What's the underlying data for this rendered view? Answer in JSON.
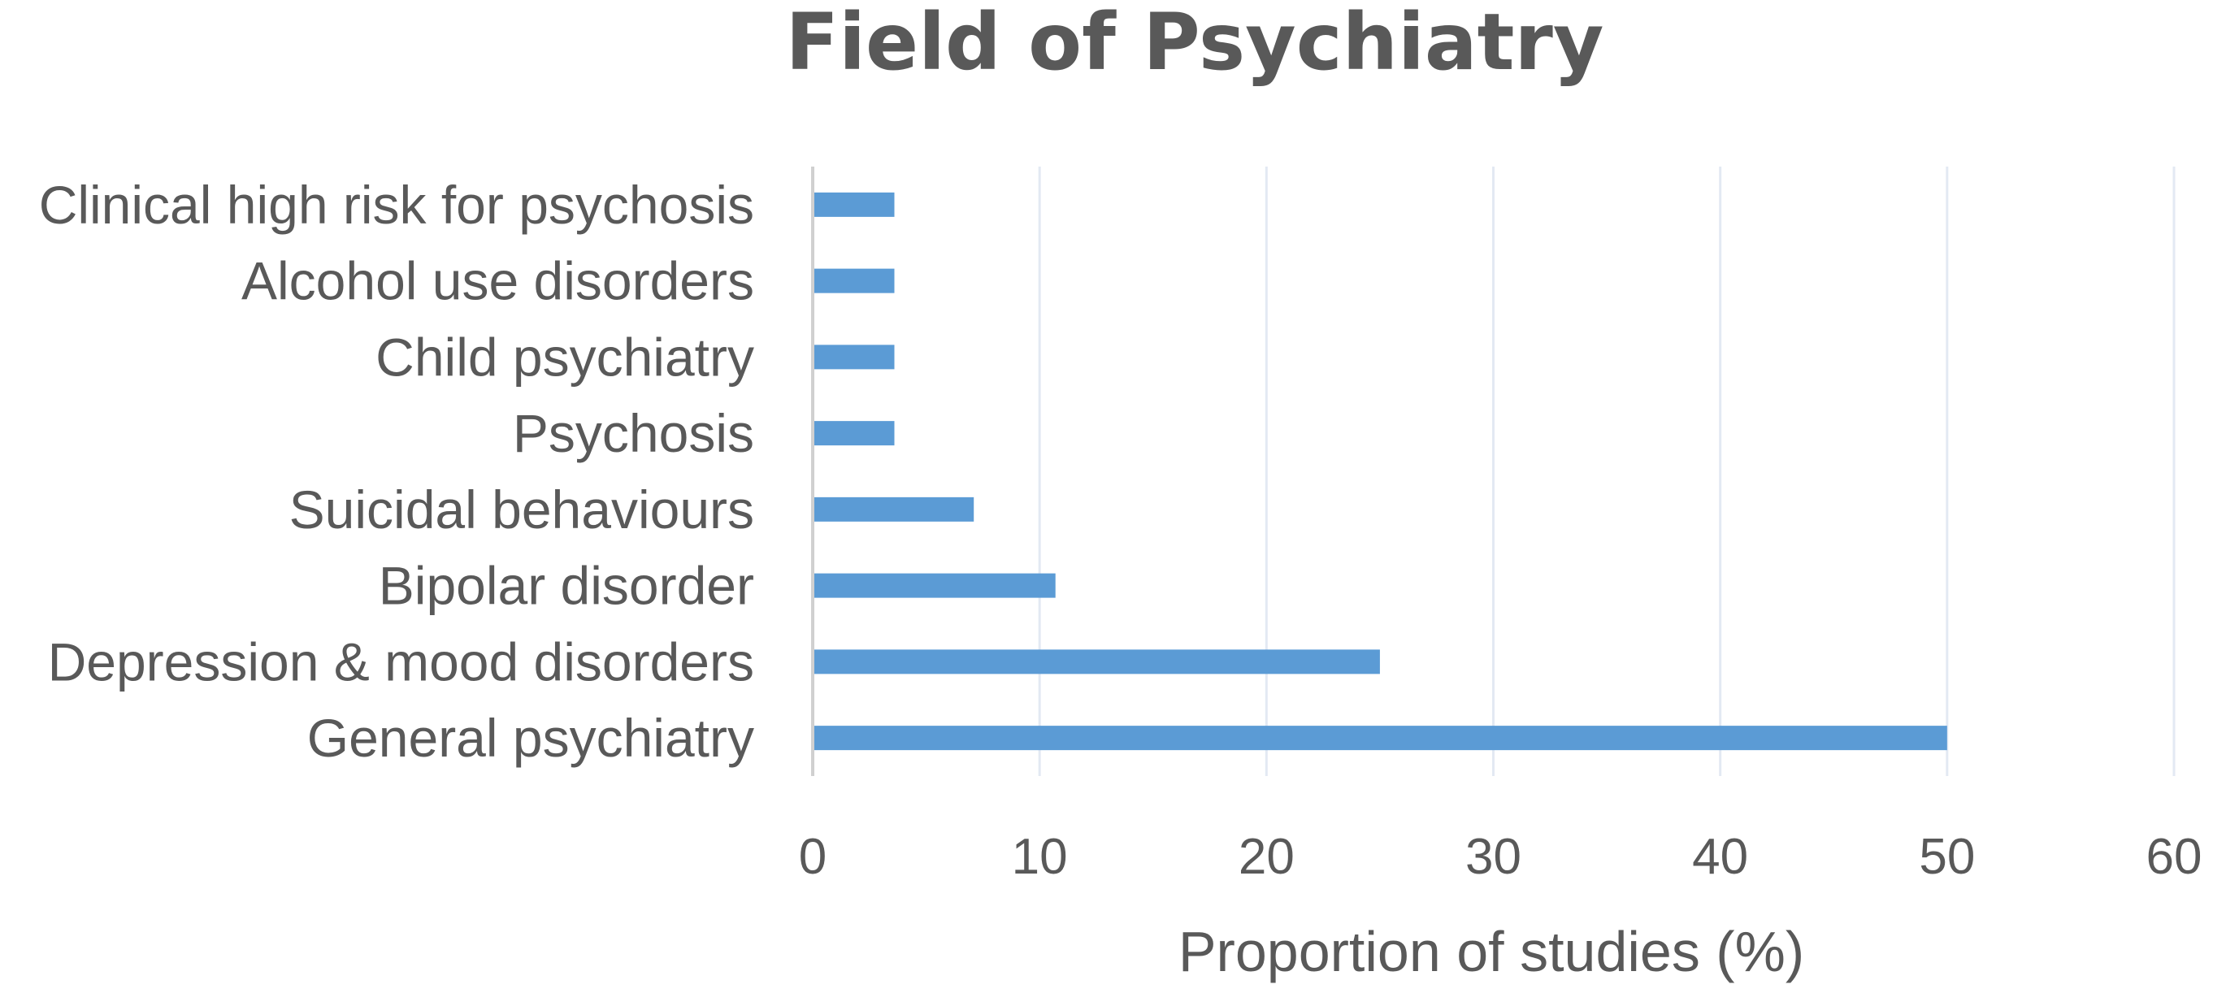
{
  "chart_data": {
    "type": "bar",
    "orientation": "horizontal",
    "title": "Field of Psychiatry",
    "xlabel": "Proportion of studies (%)",
    "ylabel": "",
    "categories": [
      "General psychiatry",
      "Depression & mood disorders",
      "Bipolar disorder",
      "Suicidal behaviours",
      "Psychosis",
      "Child psychiatry",
      "Alcohol use disorders",
      "Clinical high risk for psychosis"
    ],
    "values": [
      50,
      25,
      10.7,
      7.1,
      3.6,
      3.6,
      3.6,
      3.6
    ],
    "xlim": [
      0,
      60
    ],
    "xticks": [
      0,
      10,
      20,
      30,
      40,
      50,
      60
    ],
    "grid": "vertical",
    "legend": "none",
    "bar_color": "#5b9bd5"
  }
}
